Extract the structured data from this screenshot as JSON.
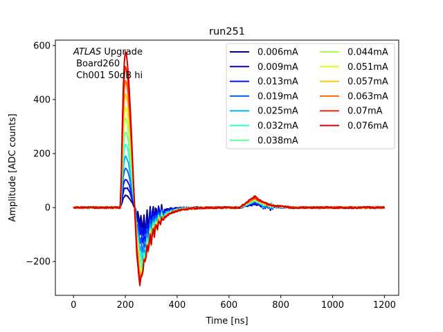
{
  "chart_data": {
    "type": "line",
    "title": "run251",
    "xlabel": "Time [ns]",
    "ylabel": "Amplitude [ADC counts]",
    "xlim": [
      -70,
      1255
    ],
    "ylim": [
      -325,
      620
    ],
    "xticks": [
      0,
      200,
      400,
      600,
      800,
      1000,
      1200
    ],
    "yticks": [
      -200,
      0,
      200,
      400,
      600
    ],
    "xtick_labels": [
      "0",
      "200",
      "400",
      "600",
      "800",
      "1000",
      "1200"
    ],
    "ytick_labels": [
      "−200",
      "0",
      "200",
      "400",
      "600"
    ],
    "annotation": {
      "prefix": "ATLAS",
      "suffix": " Upgrade",
      "line2": " Board260",
      "line3": " Ch001 50dB hi"
    },
    "legend_position": "upper right",
    "legend_columns": 2,
    "series": [
      {
        "name": "0.006mA",
        "color": "#00007f",
        "peak": 45,
        "trough": -60,
        "bump": 12
      },
      {
        "name": "0.009mA",
        "color": "#0000d0",
        "peak": 75,
        "trough": -85,
        "bump": 14
      },
      {
        "name": "0.013mA",
        "color": "#0010ff",
        "peak": 105,
        "trough": -115,
        "bump": 17
      },
      {
        "name": "0.019mA",
        "color": "#0060ff",
        "peak": 145,
        "trough": -150,
        "bump": 20
      },
      {
        "name": "0.025mA",
        "color": "#00b0ff",
        "peak": 190,
        "trough": -180,
        "bump": 22
      },
      {
        "name": "0.032mA",
        "color": "#29ffce",
        "peak": 235,
        "trough": -205,
        "bump": 25
      },
      {
        "name": "0.038mA",
        "color": "#60ff96",
        "peak": 280,
        "trough": -225,
        "bump": 27
      },
      {
        "name": "0.044mA",
        "color": "#a7ff50",
        "peak": 330,
        "trough": -240,
        "bump": 30
      },
      {
        "name": "0.051mA",
        "color": "#d6ff1a",
        "peak": 370,
        "trough": -250,
        "bump": 32
      },
      {
        "name": "0.057mA",
        "color": "#ffc400",
        "peak": 420,
        "trough": -258,
        "bump": 34
      },
      {
        "name": "0.063mA",
        "color": "#ff6800",
        "peak": 470,
        "trough": -265,
        "bump": 36
      },
      {
        "name": "0.07mA",
        "color": "#ff2200",
        "peak": 520,
        "trough": -272,
        "bump": 38
      },
      {
        "name": "0.076mA",
        "color": "#d00000",
        "peak": 575,
        "trough": -280,
        "bump": 42
      }
    ]
  }
}
